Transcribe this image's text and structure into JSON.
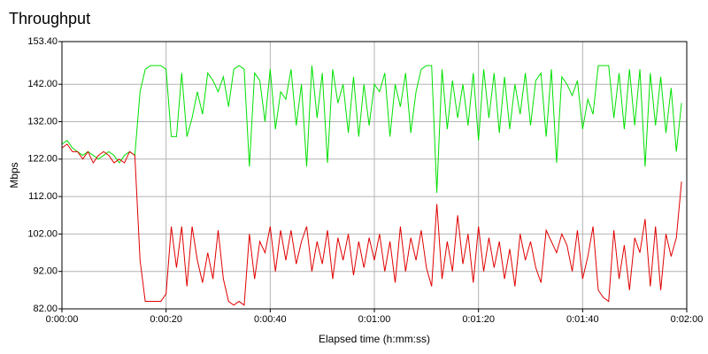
{
  "chart_data": {
    "type": "line",
    "title": "Throughput",
    "xlabel": "Elapsed time (h:mm:ss)",
    "ylabel": "Mbps",
    "grid": true,
    "xlim": [
      0,
      120
    ],
    "ylim": [
      82,
      153.4
    ],
    "xticks": [
      {
        "value": 0,
        "label": "0:00:00"
      },
      {
        "value": 20,
        "label": "0:00:20"
      },
      {
        "value": 40,
        "label": "0:00:40"
      },
      {
        "value": 60,
        "label": "0:01:00"
      },
      {
        "value": 80,
        "label": "0:01:20"
      },
      {
        "value": 100,
        "label": "0:01:40"
      },
      {
        "value": 120,
        "label": "0:02:00"
      }
    ],
    "yticks": [
      {
        "value": 82,
        "label": "82.00"
      },
      {
        "value": 92,
        "label": "92.00"
      },
      {
        "value": 102,
        "label": "102.00"
      },
      {
        "value": 112,
        "label": "112.00"
      },
      {
        "value": 122,
        "label": "122.00"
      },
      {
        "value": 132,
        "label": "132.00"
      },
      {
        "value": 142,
        "label": "142.00"
      },
      {
        "value": 153.4,
        "label": "153.40"
      }
    ],
    "x": [
      0,
      1,
      2,
      3,
      4,
      5,
      6,
      7,
      8,
      9,
      10,
      11,
      12,
      13,
      14,
      15,
      16,
      17,
      18,
      19,
      20,
      21,
      22,
      23,
      24,
      25,
      26,
      27,
      28,
      29,
      30,
      31,
      32,
      33,
      34,
      35,
      36,
      37,
      38,
      39,
      40,
      41,
      42,
      43,
      44,
      45,
      46,
      47,
      48,
      49,
      50,
      51,
      52,
      53,
      54,
      55,
      56,
      57,
      58,
      59,
      60,
      61,
      62,
      63,
      64,
      65,
      66,
      67,
      68,
      69,
      70,
      71,
      72,
      73,
      74,
      75,
      76,
      77,
      78,
      79,
      80,
      81,
      82,
      83,
      84,
      85,
      86,
      87,
      88,
      89,
      90,
      91,
      92,
      93,
      94,
      95,
      96,
      97,
      98,
      99,
      100,
      101,
      102,
      103,
      104,
      105,
      106,
      107,
      108,
      109,
      110,
      111,
      112,
      113,
      114,
      115,
      116,
      117,
      118,
      119
    ],
    "series": [
      {
        "color": "#00e000",
        "values": [
          126,
          127,
          125,
          124,
          123,
          124,
          123,
          122,
          123,
          124,
          123,
          121,
          123,
          124,
          123,
          140,
          146,
          147,
          147,
          147,
          146,
          128,
          128,
          145,
          128,
          133,
          140,
          134,
          145,
          143,
          140,
          144,
          136,
          146,
          147,
          146,
          120,
          145,
          143,
          132,
          146,
          130,
          140,
          138,
          146,
          131,
          142,
          120,
          147,
          133,
          145,
          121,
          146,
          137,
          142,
          129,
          144,
          128,
          142,
          131,
          142,
          140,
          145,
          128,
          142,
          136,
          145,
          129,
          140,
          146,
          147,
          147,
          113,
          146,
          130,
          143,
          133,
          142,
          131,
          145,
          127,
          146,
          133,
          145,
          129,
          144,
          130,
          142,
          134,
          145,
          131,
          143,
          145,
          128,
          146,
          121,
          144,
          142,
          139,
          143,
          130,
          138,
          134,
          147,
          147,
          147,
          133,
          145,
          130,
          146,
          131,
          146,
          120,
          145,
          131,
          144,
          129,
          141,
          124,
          137
        ]
      },
      {
        "color": "#e00000",
        "values": [
          125,
          126,
          124,
          124,
          122,
          124,
          121,
          123,
          124,
          123,
          121,
          122,
          121,
          124,
          123,
          95,
          84,
          84,
          84,
          84,
          86,
          104,
          93,
          104,
          88,
          104,
          95,
          89,
          97,
          90,
          103,
          90,
          84,
          83,
          84,
          83,
          102,
          90,
          100,
          97,
          104,
          92,
          103,
          95,
          103,
          94,
          100,
          104,
          92,
          100,
          94,
          103,
          90,
          101,
          95,
          102,
          91,
          100,
          93,
          101,
          95,
          102,
          92,
          100,
          89,
          104,
          92,
          101,
          95,
          103,
          93,
          88,
          110,
          90,
          100,
          92,
          107,
          94,
          102,
          89,
          104,
          92,
          101,
          93,
          100,
          90,
          98,
          88,
          102,
          95,
          100,
          93,
          89,
          103,
          100,
          97,
          102,
          99,
          92,
          103,
          90,
          96,
          104,
          87,
          85,
          84,
          103,
          90,
          99,
          87,
          101,
          97,
          106,
          88,
          104,
          87,
          102,
          96,
          101,
          116
        ]
      }
    ]
  }
}
